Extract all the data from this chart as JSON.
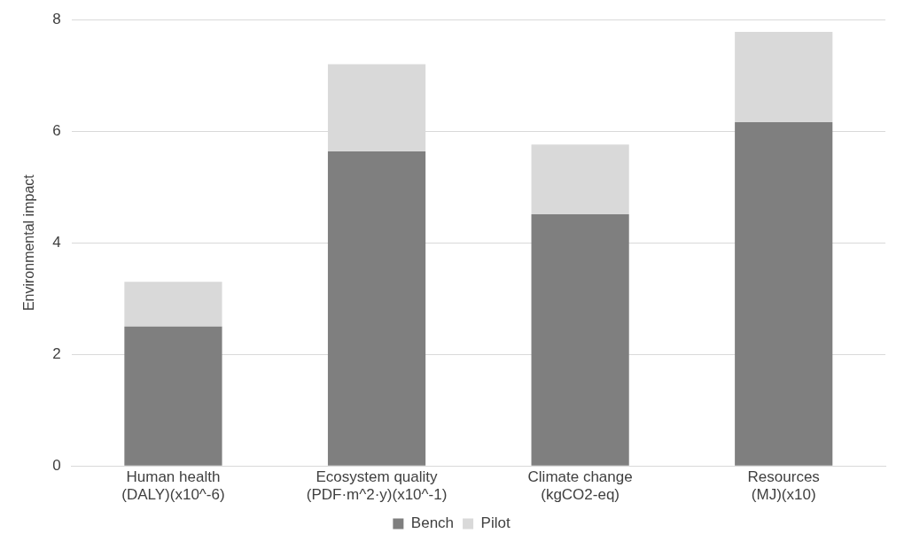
{
  "chart_data": {
    "type": "bar",
    "stacked": true,
    "ylabel": "Environmental impact",
    "categories": [
      "Human health (DALY)(x10^-6)",
      "Ecosystem quality (PDF·m^2·y)(x10^-1)",
      "Climate change (kgCO2-eq)",
      "Resources (MJ)(x10)"
    ],
    "series": [
      {
        "name": "Bench",
        "color": "#7f7f7f",
        "values": [
          2.5,
          5.64,
          4.51,
          6.16
        ]
      },
      {
        "name": "Pilot",
        "color": "#d9d9d9",
        "values": [
          0.8,
          1.56,
          1.25,
          1.62
        ]
      }
    ],
    "ylim": [
      0,
      8
    ],
    "yticks": [
      0,
      2,
      4,
      6,
      8
    ],
    "grid": "y",
    "legend": "bottom"
  }
}
